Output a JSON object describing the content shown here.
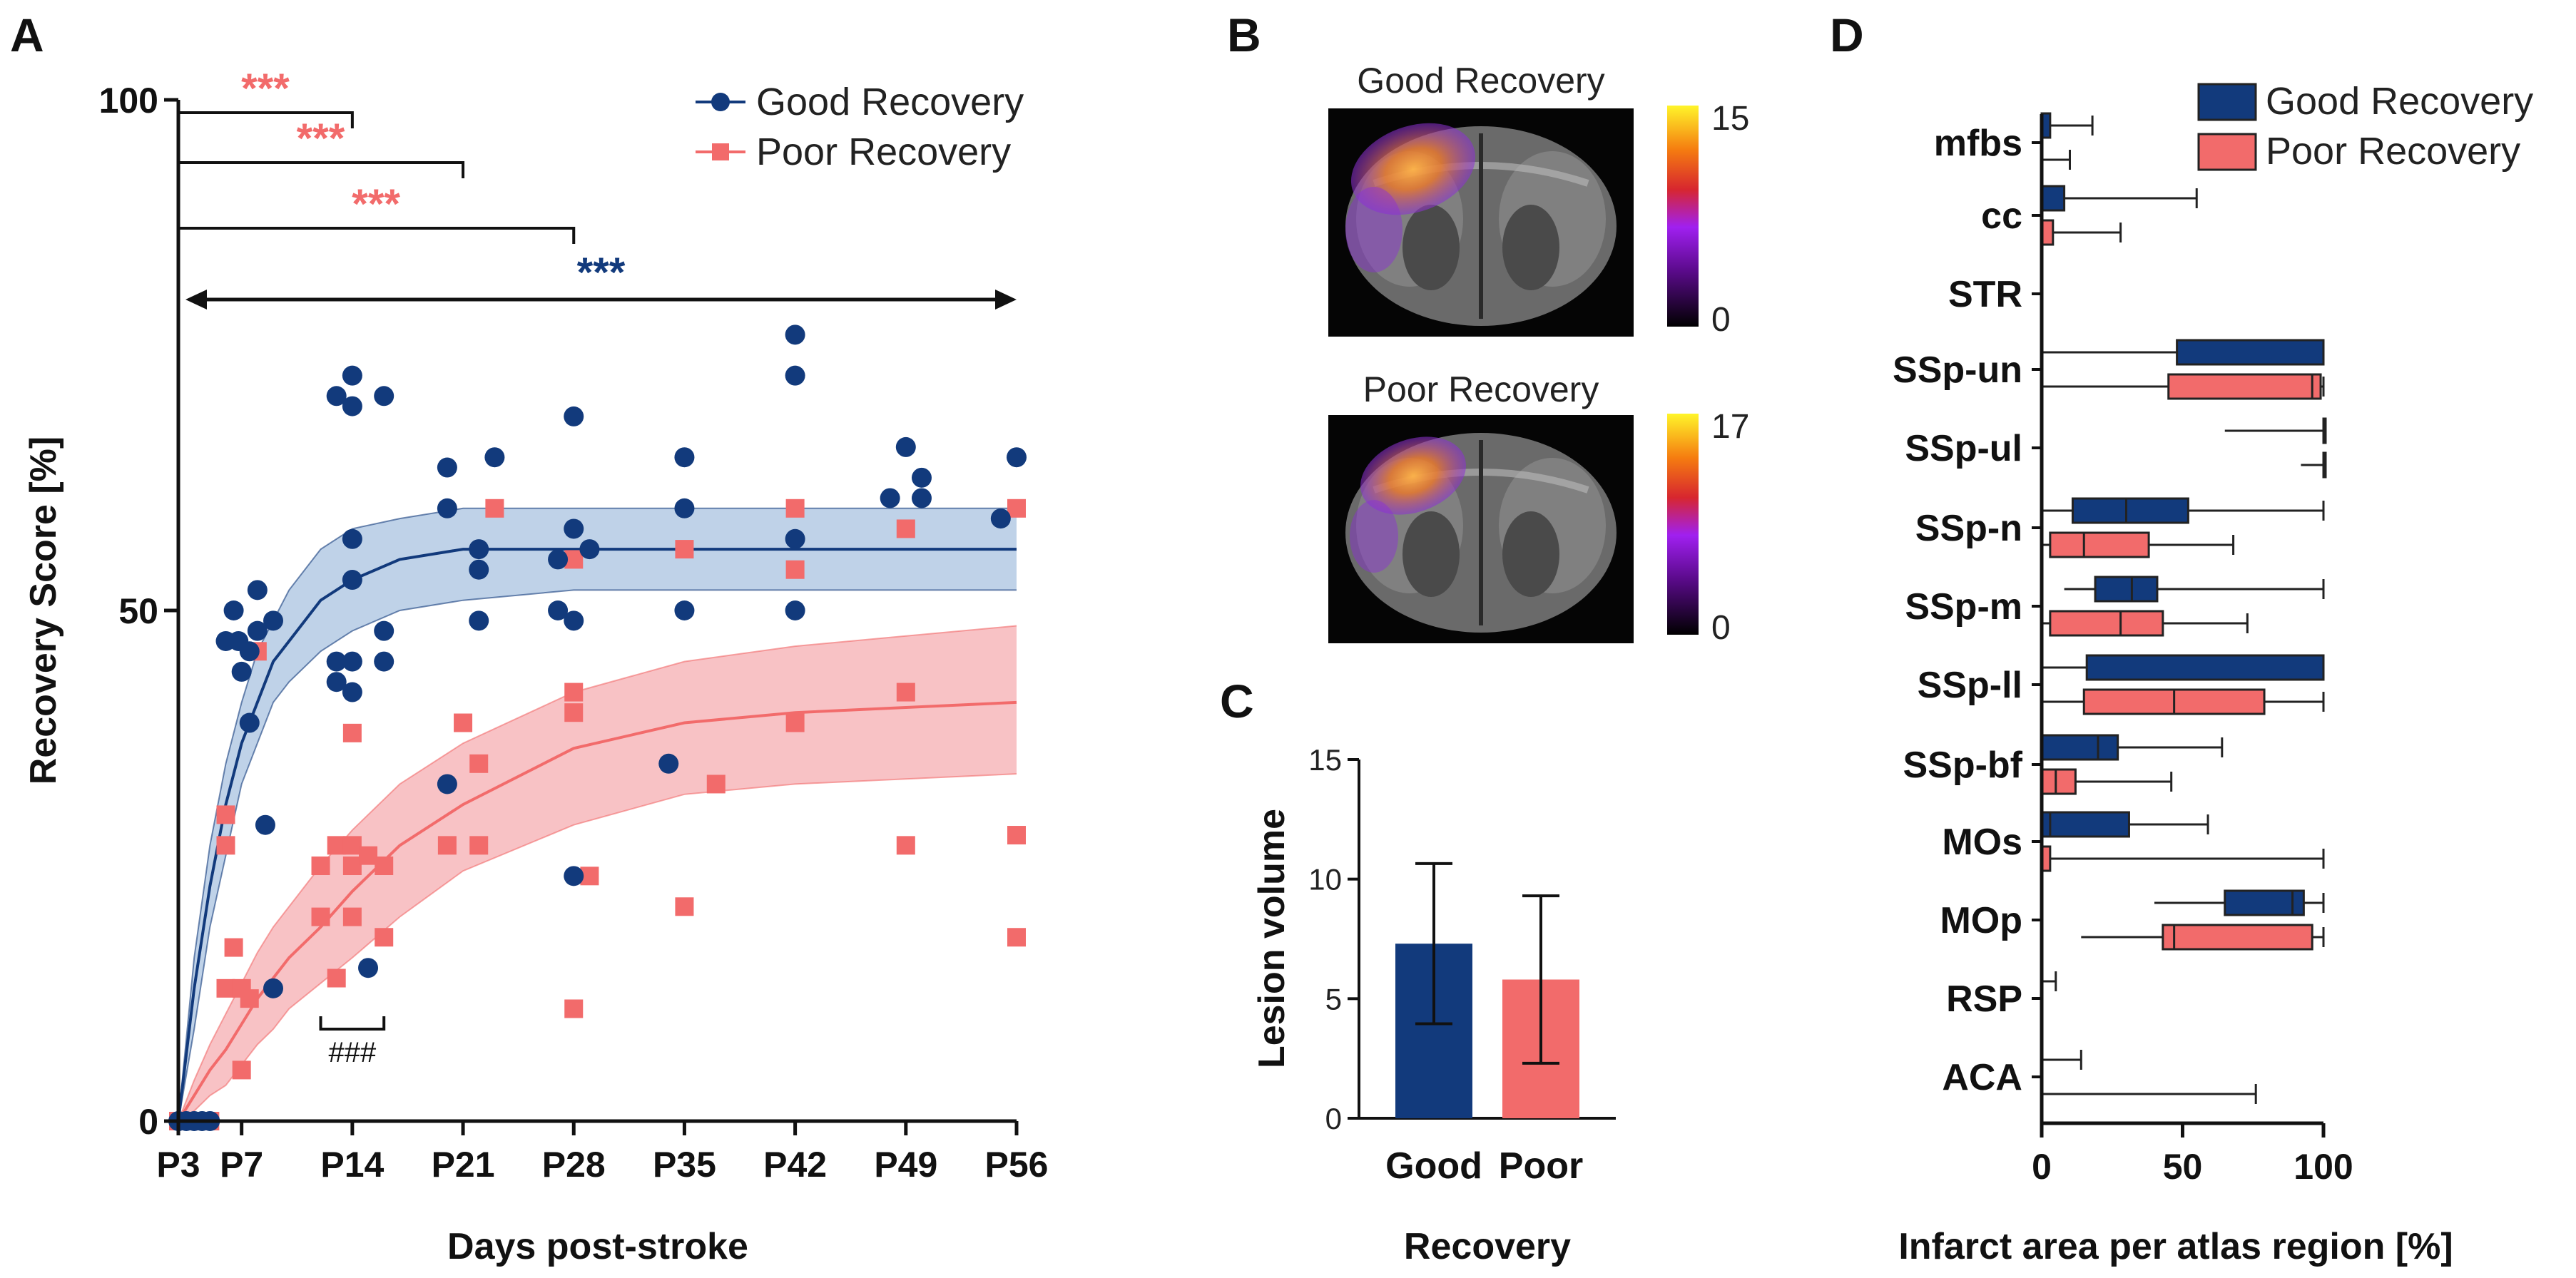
{
  "colors": {
    "good": "#123A7C",
    "poor": "#F26B6B",
    "good_band": "#A9C3E0",
    "poor_band": "#F6AEB2",
    "axis": "#111111"
  },
  "panels": {
    "a": "A",
    "b": "B",
    "c": "C",
    "d": "D"
  },
  "chart_data": [
    {
      "type": "scatter",
      "panel": "A",
      "xlabel": "Days post-stroke",
      "ylabel": "Recovery Score [%]",
      "xlim": [
        3,
        56
      ],
      "ylim": [
        0,
        100
      ],
      "x_ticks": [
        3,
        7,
        14,
        21,
        28,
        35,
        42,
        49,
        56
      ],
      "x_tick_labels": [
        "P3",
        "P7",
        "P14",
        "P21",
        "P28",
        "P35",
        "P42",
        "P49",
        "P56"
      ],
      "y_ticks": [
        0,
        50,
        100
      ],
      "y_tick_labels": [
        "0",
        "50",
        "100"
      ],
      "legend": [
        "Good Recovery",
        "Poor Recovery"
      ],
      "series": [
        {
          "name": "Good Recovery",
          "marker": "circle",
          "points": [
            [
              3,
              0
            ],
            [
              3.5,
              0
            ],
            [
              4,
              0
            ],
            [
              4.5,
              0
            ],
            [
              5,
              0
            ],
            [
              6,
              47
            ],
            [
              6.5,
              50
            ],
            [
              6.8,
              47
            ],
            [
              7,
              44
            ],
            [
              7.5,
              46
            ],
            [
              7.5,
              39
            ],
            [
              8,
              48
            ],
            [
              8,
              52
            ],
            [
              8.5,
              29
            ],
            [
              9,
              13
            ],
            [
              9,
              49
            ],
            [
              13,
              71
            ],
            [
              13,
              45
            ],
            [
              13,
              43
            ],
            [
              14,
              73
            ],
            [
              14,
              70
            ],
            [
              14,
              57
            ],
            [
              14,
              53
            ],
            [
              14,
              45
            ],
            [
              14,
              42
            ],
            [
              15,
              15
            ],
            [
              16,
              71
            ],
            [
              16,
              48
            ],
            [
              16,
              45
            ],
            [
              20,
              33
            ],
            [
              20,
              60
            ],
            [
              20,
              64
            ],
            [
              22,
              56
            ],
            [
              22,
              54
            ],
            [
              22,
              49
            ],
            [
              23,
              65
            ],
            [
              27,
              50
            ],
            [
              27,
              55
            ],
            [
              28,
              69
            ],
            [
              28,
              58
            ],
            [
              28,
              49
            ],
            [
              28,
              24
            ],
            [
              29,
              56
            ],
            [
              34,
              35
            ],
            [
              35,
              65
            ],
            [
              35,
              60
            ],
            [
              35,
              50
            ],
            [
              42,
              77
            ],
            [
              42,
              73
            ],
            [
              42,
              57
            ],
            [
              42,
              50
            ],
            [
              48,
              61
            ],
            [
              49,
              66
            ],
            [
              50,
              61
            ],
            [
              50,
              63
            ],
            [
              55,
              59
            ],
            [
              56,
              65
            ]
          ],
          "fit_x": [
            3,
            4,
            5,
            6,
            7,
            8,
            9,
            10,
            12,
            14,
            17,
            21,
            28,
            35,
            42,
            49,
            56
          ],
          "fit_y": [
            0,
            13,
            23,
            31,
            37,
            41,
            45,
            47,
            51,
            53,
            55,
            56,
            56,
            56,
            56,
            56,
            56
          ],
          "ci_upper": [
            0,
            16,
            27,
            35,
            41,
            46,
            49,
            52,
            56,
            58,
            59,
            60,
            60,
            60,
            60,
            60,
            60
          ],
          "ci_lower": [
            0,
            9,
            19,
            26,
            33,
            37,
            41,
            43,
            46,
            48,
            50,
            51,
            52,
            52,
            52,
            52,
            52
          ]
        },
        {
          "name": "Poor Recovery",
          "marker": "square",
          "points": [
            [
              3,
              0
            ],
            [
              3.5,
              0
            ],
            [
              4,
              0
            ],
            [
              4.5,
              0
            ],
            [
              5,
              0
            ],
            [
              6,
              13
            ],
            [
              6,
              27
            ],
            [
              6,
              30
            ],
            [
              6.5,
              17
            ],
            [
              7,
              5
            ],
            [
              7,
              13
            ],
            [
              7.5,
              12
            ],
            [
              8,
              46
            ],
            [
              12,
              25
            ],
            [
              12,
              20
            ],
            [
              13,
              14
            ],
            [
              13,
              27
            ],
            [
              14,
              38
            ],
            [
              14,
              27
            ],
            [
              14,
              25
            ],
            [
              14,
              20
            ],
            [
              15,
              26
            ],
            [
              16,
              25
            ],
            [
              16,
              18
            ],
            [
              20,
              27
            ],
            [
              21,
              39
            ],
            [
              22,
              35
            ],
            [
              22,
              27
            ],
            [
              23,
              60
            ],
            [
              28,
              55
            ],
            [
              28,
              42
            ],
            [
              28,
              40
            ],
            [
              28,
              11
            ],
            [
              29,
              24
            ],
            [
              35,
              56
            ],
            [
              35,
              21
            ],
            [
              37,
              33
            ],
            [
              42,
              60
            ],
            [
              42,
              54
            ],
            [
              42,
              39
            ],
            [
              49,
              58
            ],
            [
              49,
              42
            ],
            [
              49,
              27
            ],
            [
              56,
              60
            ],
            [
              56,
              28
            ],
            [
              56,
              18
            ]
          ],
          "fit_x": [
            3,
            4,
            5,
            6,
            7,
            8,
            9,
            10,
            12,
            14,
            17,
            21,
            28,
            35,
            42,
            49,
            56
          ],
          "fit_y": [
            0,
            2.5,
            5,
            7,
            9.5,
            12,
            14,
            16,
            19,
            22.5,
            27,
            31,
            36.5,
            39,
            40,
            40.5,
            41
          ],
          "ci_upper": [
            0,
            4,
            7.5,
            10.5,
            13.5,
            16.5,
            19,
            21,
            25,
            28.5,
            33,
            37,
            42,
            45,
            46.5,
            47.5,
            48.5
          ],
          "ci_lower": [
            0,
            1,
            2.5,
            3.5,
            5.5,
            7.5,
            9,
            11,
            13.5,
            16,
            20,
            24.5,
            29,
            32,
            33,
            33.5,
            34
          ]
        }
      ],
      "annotations": {
        "sig_brackets": [
          {
            "from": "P3",
            "to": "P14",
            "label": "***"
          },
          {
            "from": "P3",
            "to": "P21",
            "label": "***"
          },
          {
            "from": "P3",
            "to": "P28",
            "label": "***"
          }
        ],
        "arrow": {
          "from": "P3",
          "to": "P56",
          "label": "***"
        },
        "hash_bracket": {
          "from": 12,
          "to": 16,
          "label": "###"
        }
      }
    },
    {
      "type": "heatmap",
      "panel": "B",
      "maps": [
        {
          "title": "Good Recovery",
          "colorbar_max": "15",
          "colorbar_min": "0"
        },
        {
          "title": "Poor Recovery",
          "colorbar_max": "17",
          "colorbar_min": "0"
        }
      ]
    },
    {
      "type": "bar",
      "panel": "C",
      "categories": [
        "Good",
        "Poor"
      ],
      "values": [
        7.3,
        5.8
      ],
      "errors": [
        3.35,
        3.5
      ],
      "xlabel": "Recovery",
      "ylabel": "Lesion volume",
      "ylim": [
        0,
        15
      ],
      "y_ticks": [
        "0",
        "5",
        "10",
        "15"
      ]
    },
    {
      "type": "box",
      "panel": "D",
      "xlabel": "Infarct area per atlas region [%]",
      "xlim": [
        0,
        100
      ],
      "x_ticks": [
        "0",
        "50",
        "100"
      ],
      "legend": [
        "Good Recovery",
        "Poor Recovery"
      ],
      "categories": [
        "mfbs",
        "cc",
        "STR",
        "SSp-un",
        "SSp-ul",
        "SSp-n",
        "SSp-m",
        "SSp-ll",
        "SSp-bf",
        "MOs",
        "MOp",
        "RSP",
        "ACA"
      ],
      "series": [
        {
          "name": "Good Recovery",
          "boxes": [
            [
              0,
              0,
              0,
              3,
              18
            ],
            [
              0,
              0,
              0,
              8,
              55
            ],
            [
              0,
              0,
              0,
              0,
              0
            ],
            [
              0,
              48,
              100,
              100,
              100
            ],
            [
              65,
              100,
              100,
              100,
              100
            ],
            [
              0,
              11,
              30,
              52,
              100
            ],
            [
              8,
              19,
              32,
              41,
              100
            ],
            [
              0,
              16,
              100,
              100,
              100
            ],
            [
              0,
              0,
              20,
              27,
              64
            ],
            [
              0,
              0,
              3,
              31,
              59
            ],
            [
              40,
              65,
              89,
              93,
              100
            ],
            [
              0,
              0,
              0,
              0,
              5
            ],
            [
              0,
              0,
              0,
              0,
              14
            ]
          ]
        },
        {
          "name": "Poor Recovery",
          "boxes": [
            [
              0,
              0,
              0,
              0,
              10
            ],
            [
              0,
              0,
              0,
              4,
              28
            ],
            [
              0,
              0,
              0,
              0,
              0
            ],
            [
              0,
              45,
              96,
              99,
              100
            ],
            [
              92,
              100,
              100,
              100,
              100
            ],
            [
              0,
              3,
              15,
              38,
              68
            ],
            [
              0,
              3,
              28,
              43,
              73
            ],
            [
              0,
              15,
              47,
              79,
              100
            ],
            [
              0,
              0,
              5,
              12,
              46
            ],
            [
              0,
              0,
              0,
              3,
              100
            ],
            [
              14,
              43,
              47,
              96,
              100
            ],
            [
              0,
              0,
              0,
              0,
              0
            ],
            [
              0,
              0,
              0,
              0,
              76
            ]
          ]
        }
      ]
    }
  ]
}
